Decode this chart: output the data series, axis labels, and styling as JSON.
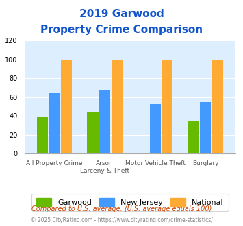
{
  "title_line1": "2019 Garwood",
  "title_line2": "Property Crime Comparison",
  "categories": [
    "All Property Crime",
    "Arson\nLarceny & Theft",
    "Motor Vehicle Theft",
    "Burglary"
  ],
  "x_labels_line1": [
    "All Property Crime",
    "Arson",
    "Motor Vehicle Theft",
    "Burglary"
  ],
  "x_labels_line2": [
    "",
    "Larceny & Theft",
    "",
    ""
  ],
  "garwood": [
    39,
    45,
    0,
    35
  ],
  "new_jersey": [
    64,
    67,
    53,
    55
  ],
  "national": [
    100,
    100,
    100,
    100
  ],
  "color_garwood": "#66bb00",
  "color_nj": "#4499ff",
  "color_national": "#ffaa33",
  "ylim": [
    0,
    120
  ],
  "yticks": [
    0,
    20,
    40,
    60,
    80,
    100,
    120
  ],
  "bg_color": "#ddeeff",
  "title_color": "#1155cc",
  "legend_labels": [
    "Garwood",
    "New Jersey",
    "National"
  ],
  "footer_text1": "Compared to U.S. average. (U.S. average equals 100)",
  "footer_text2": "© 2025 CityRating.com - https://www.cityrating.com/crime-statistics/",
  "footer_color1": "#cc4400",
  "footer_color2": "#888888"
}
